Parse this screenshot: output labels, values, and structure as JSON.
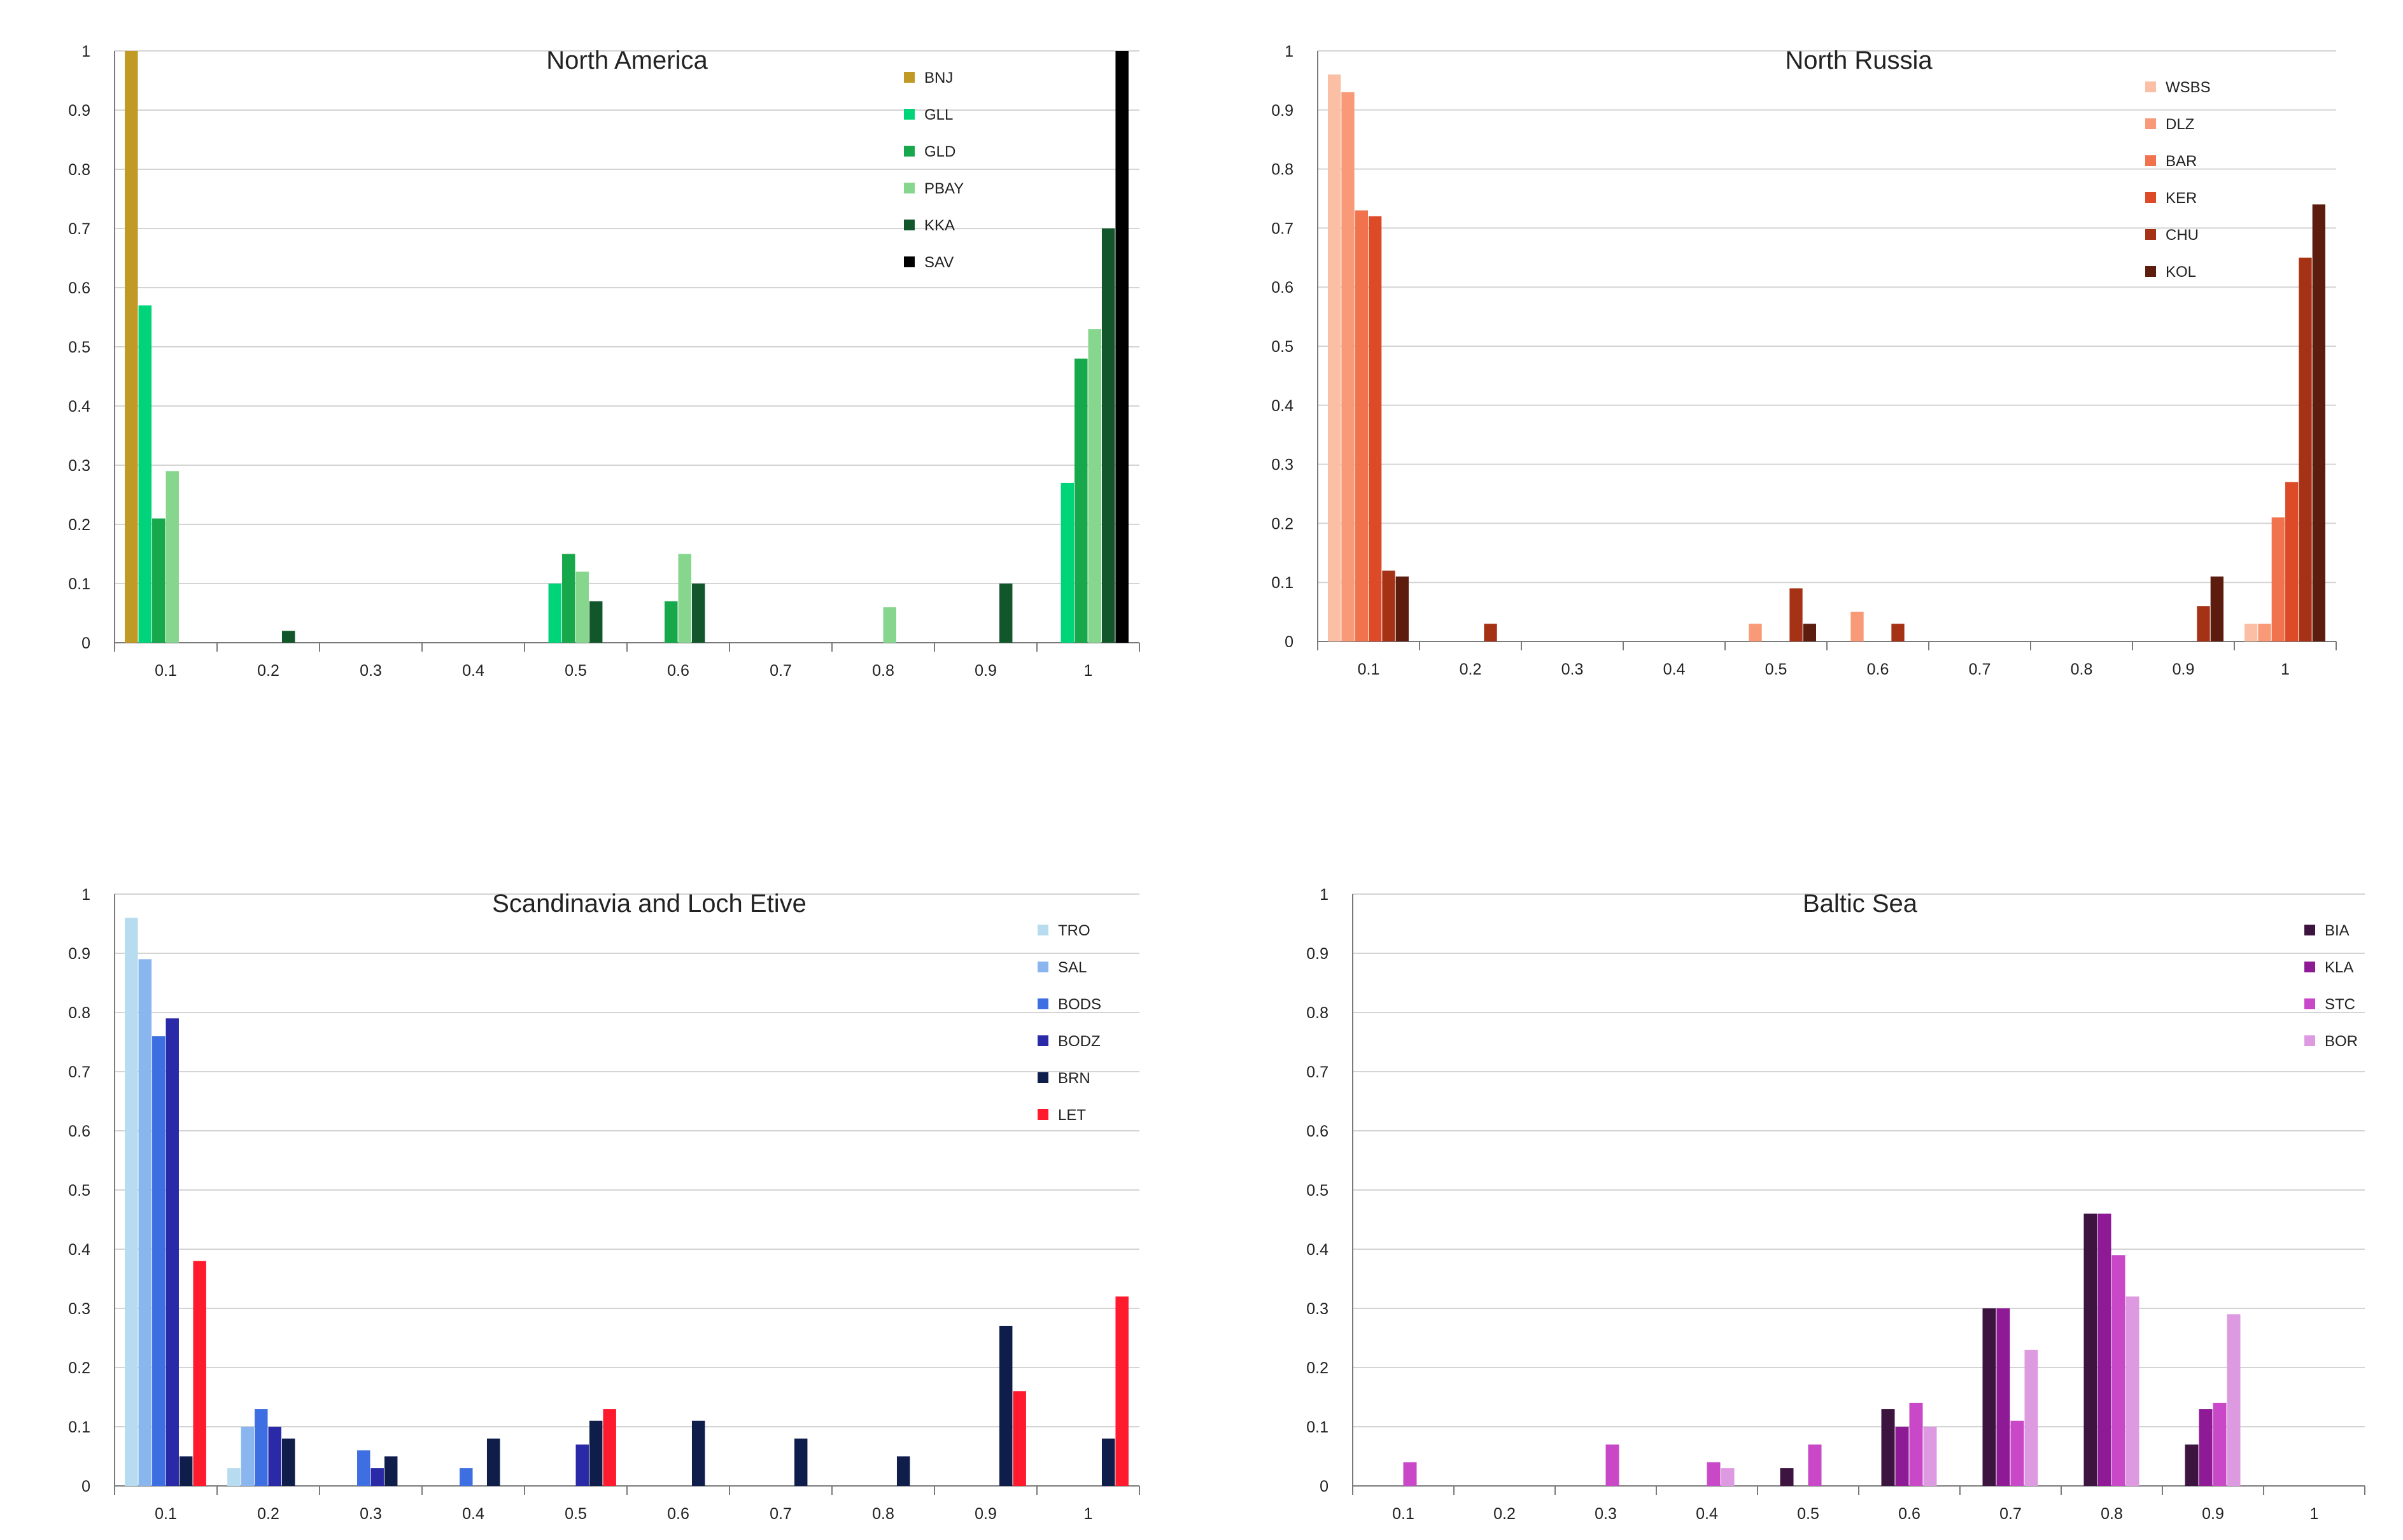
{
  "chart_data": [
    {
      "type": "bar",
      "title": "North America",
      "categories": [
        "0.1",
        "0.2",
        "0.3",
        "0.4",
        "0.5",
        "0.6",
        "0.7",
        "0.8",
        "0.9",
        "1"
      ],
      "yticks": [
        "0",
        "0.1",
        "0.2",
        "0.3",
        "0.4",
        "0.5",
        "0.6",
        "0.7",
        "0.8",
        "0.9",
        "1"
      ],
      "ylim": [
        0,
        1
      ],
      "xlabel": "",
      "ylabel": "",
      "legend_position": "top-right",
      "series": [
        {
          "name": "BNJ",
          "color": "#c09a25",
          "values": [
            1.0,
            0,
            0,
            0,
            0,
            0,
            0,
            0,
            0,
            0
          ]
        },
        {
          "name": "GLL",
          "color": "#00d47a",
          "values": [
            0.57,
            0,
            0,
            0,
            0.1,
            0,
            0,
            0,
            0,
            0.27
          ]
        },
        {
          "name": "GLD",
          "color": "#16a84a",
          "values": [
            0.21,
            0,
            0,
            0,
            0.15,
            0.07,
            0,
            0,
            0,
            0.48
          ]
        },
        {
          "name": "PBAY",
          "color": "#86d68e",
          "values": [
            0.29,
            0,
            0,
            0,
            0.12,
            0.15,
            0,
            0.06,
            0,
            0.53
          ]
        },
        {
          "name": "KKA",
          "color": "#12572b",
          "values": [
            0,
            0.02,
            0,
            0,
            0.07,
            0.1,
            0,
            0,
            0.1,
            0.7
          ]
        },
        {
          "name": "SAV",
          "color": "#000000",
          "values": [
            0,
            0,
            0,
            0,
            0,
            0,
            0,
            0,
            0,
            1.0
          ]
        }
      ]
    },
    {
      "type": "bar",
      "title": "North Russia",
      "categories": [
        "0.1",
        "0.2",
        "0.3",
        "0.4",
        "0.5",
        "0.6",
        "0.7",
        "0.8",
        "0.9",
        "1"
      ],
      "yticks": [
        "0",
        "0.1",
        "0.2",
        "0.3",
        "0.4",
        "0.5",
        "0.6",
        "0.7",
        "0.8",
        "0.9",
        "1"
      ],
      "ylim": [
        0,
        1
      ],
      "xlabel": "",
      "ylabel": "",
      "legend_position": "top-right",
      "series": [
        {
          "name": "WSBS",
          "color": "#fbbfa6",
          "values": [
            0.96,
            0,
            0,
            0,
            0,
            0,
            0,
            0,
            0,
            0.03
          ]
        },
        {
          "name": "DLZ",
          "color": "#f89a78",
          "values": [
            0.93,
            0,
            0,
            0,
            0.03,
            0.05,
            0,
            0,
            0,
            0.03
          ]
        },
        {
          "name": "BAR",
          "color": "#f0734e",
          "values": [
            0.73,
            0,
            0,
            0,
            0,
            0,
            0,
            0,
            0,
            0.21
          ]
        },
        {
          "name": "KER",
          "color": "#dc4a28",
          "values": [
            0.72,
            0,
            0,
            0,
            0,
            0,
            0,
            0,
            0,
            0.27
          ]
        },
        {
          "name": "CHU",
          "color": "#a63216",
          "values": [
            0.12,
            0.03,
            0,
            0,
            0.09,
            0.03,
            0,
            0,
            0.06,
            0.65
          ]
        },
        {
          "name": "KOL",
          "color": "#5c1d0e",
          "values": [
            0.11,
            0,
            0,
            0,
            0.03,
            0,
            0,
            0,
            0.11,
            0.74
          ]
        }
      ]
    },
    {
      "type": "bar",
      "title": "Scandinavia and  Loch Etive",
      "categories": [
        "0.1",
        "0.2",
        "0.3",
        "0.4",
        "0.5",
        "0.6",
        "0.7",
        "0.8",
        "0.9",
        "1"
      ],
      "yticks": [
        "0",
        "0.1",
        "0.2",
        "0.3",
        "0.4",
        "0.5",
        "0.6",
        "0.7",
        "0.8",
        "0.9",
        "1"
      ],
      "ylim": [
        0,
        1
      ],
      "xlabel": "",
      "ylabel": "",
      "legend_position": "top-right",
      "series": [
        {
          "name": "TRO",
          "color": "#b8dcef",
          "values": [
            0.96,
            0.03,
            0,
            0,
            0,
            0,
            0,
            0,
            0,
            0
          ]
        },
        {
          "name": "SAL",
          "color": "#8ab6ef",
          "values": [
            0.89,
            0.1,
            0,
            0,
            0,
            0,
            0,
            0,
            0,
            0
          ]
        },
        {
          "name": "BODS",
          "color": "#3d6fe3",
          "values": [
            0.76,
            0.13,
            0.06,
            0.03,
            0,
            0,
            0,
            0,
            0,
            0
          ]
        },
        {
          "name": "BODZ",
          "color": "#2a2aa8",
          "values": [
            0.79,
            0.1,
            0.03,
            0,
            0.07,
            0,
            0,
            0,
            0,
            0
          ]
        },
        {
          "name": "BRN",
          "color": "#0e1d4a",
          "values": [
            0.05,
            0.08,
            0.05,
            0.08,
            0.11,
            0.11,
            0.08,
            0.05,
            0.27,
            0.08
          ]
        },
        {
          "name": "LET",
          "color": "#ff1a2e",
          "values": [
            0.38,
            0,
            0,
            0,
            0.13,
            0,
            0,
            0,
            0.16,
            0.32
          ]
        }
      ]
    },
    {
      "type": "bar",
      "title": "Baltic Sea",
      "categories": [
        "0.1",
        "0.2",
        "0.3",
        "0.4",
        "0.5",
        "0.6",
        "0.7",
        "0.8",
        "0.9",
        "1"
      ],
      "yticks": [
        "0",
        "0.1",
        "0.2",
        "0.3",
        "0.4",
        "0.5",
        "0.6",
        "0.7",
        "0.8",
        "0.9",
        "1"
      ],
      "ylim": [
        0,
        1
      ],
      "xlabel": "",
      "ylabel": "",
      "legend_position": "top-right",
      "series": [
        {
          "name": "BIA",
          "color": "#3d1440",
          "values": [
            0,
            0,
            0,
            0,
            0.03,
            0.13,
            0.3,
            0.46,
            0.07,
            0
          ]
        },
        {
          "name": "KLA",
          "color": "#8e1a96",
          "values": [
            0,
            0,
            0,
            0,
            0,
            0.1,
            0.3,
            0.46,
            0.13,
            0
          ]
        },
        {
          "name": "STC",
          "color": "#c848c8",
          "values": [
            0.04,
            0,
            0.07,
            0.04,
            0.07,
            0.14,
            0.11,
            0.39,
            0.14,
            0
          ]
        },
        {
          "name": "BOR",
          "color": "#de9ae0",
          "values": [
            0,
            0,
            0,
            0.03,
            0,
            0.1,
            0.23,
            0.32,
            0.29,
            0
          ]
        }
      ]
    }
  ]
}
